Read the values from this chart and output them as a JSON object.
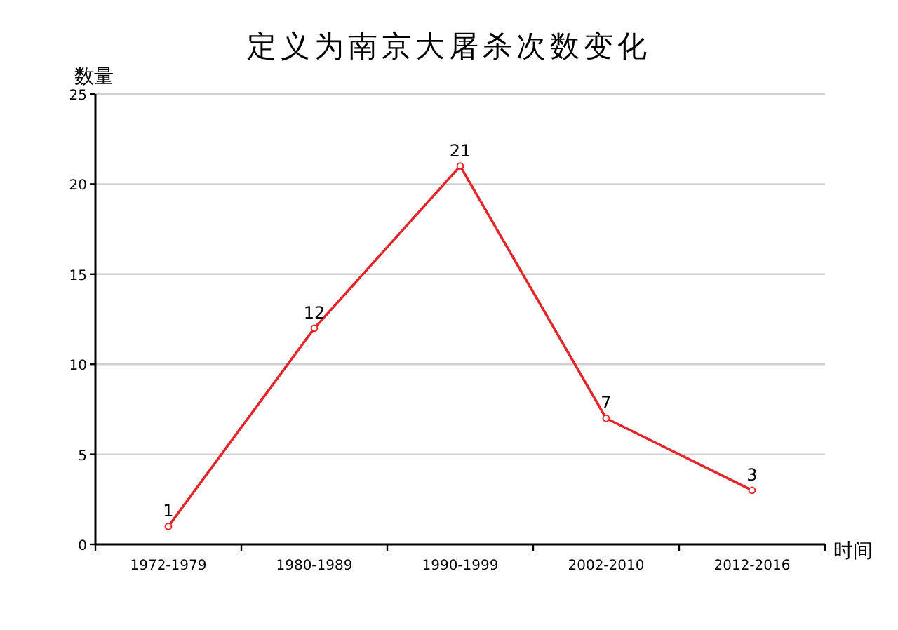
{
  "chart_data": {
    "type": "line",
    "title": "定义为南京大屠杀次数变化",
    "xlabel": "时间",
    "ylabel": "数量",
    "categories": [
      "1972-1979",
      "1980-1989",
      "1990-1999",
      "2002-2010",
      "2012-2016"
    ],
    "series": [
      {
        "color": "#e0282a",
        "values": [
          1,
          12,
          21,
          7,
          3
        ]
      }
    ],
    "ylim": [
      0,
      25
    ],
    "yticks": [
      0,
      5,
      10,
      15,
      20,
      25
    ],
    "grid": "y",
    "marker": "circle",
    "line_style": "solid",
    "data_labels": true
  }
}
